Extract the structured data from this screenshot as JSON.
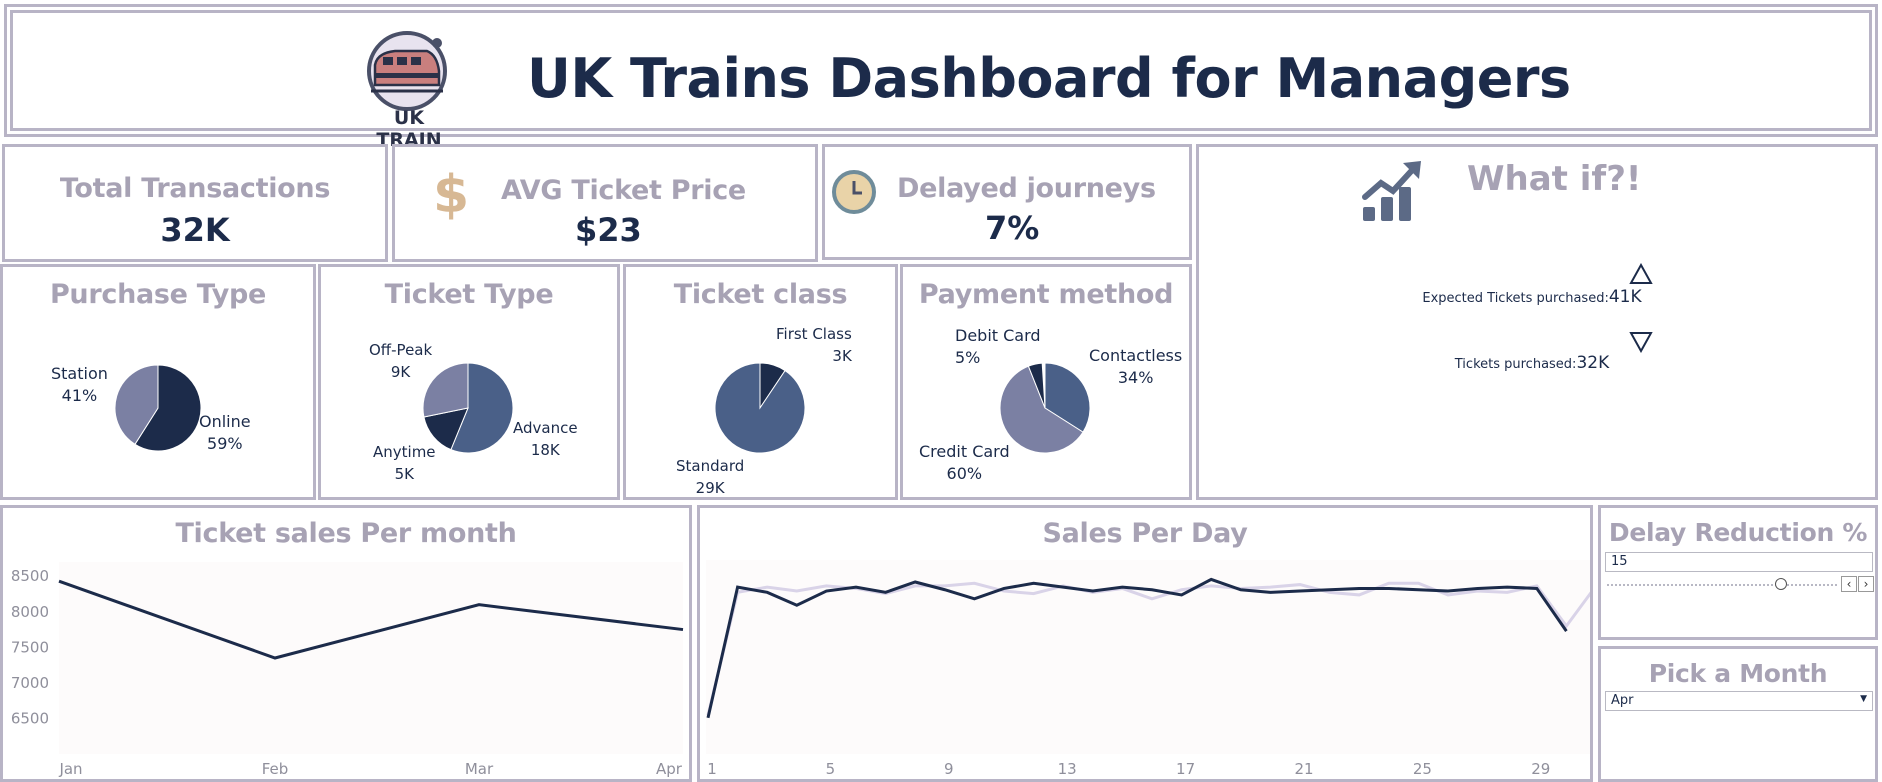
{
  "header": {
    "title": "UK Trains Dashboard for Managers",
    "logo_text": "UK TRAIN"
  },
  "kpis": {
    "total_transactions": {
      "label": "Total Transactions",
      "value": "32K"
    },
    "avg_ticket_price": {
      "label": "AVG Ticket Price",
      "value": "$23",
      "icon": "dollar-icon"
    },
    "delayed_journeys": {
      "label": "Delayed journeys",
      "value": "7%",
      "icon": "clock-icon"
    }
  },
  "whatif": {
    "title": "What if?!",
    "icon": "trend-up-chart-icon",
    "expected_label": "Expected Tickets purchased:",
    "expected_value": "41K",
    "purchased_label": "Tickets purchased:",
    "purchased_value": "32K"
  },
  "colors": {
    "navy": "#1c2b4a",
    "slate": "#4a6088",
    "lavender": "#7b80a3",
    "muted_title": "#a7a2b4",
    "border": "#b8b4c6",
    "light_line": "#d9d3e8"
  },
  "pies": {
    "purchase_type": {
      "title": "Purchase Type",
      "slices": [
        {
          "name": "Online",
          "value": "59%",
          "share": 0.59,
          "color": "#1c2b4a"
        },
        {
          "name": "Station",
          "value": "41%",
          "share": 0.41,
          "color": "#7b80a3"
        }
      ]
    },
    "ticket_type": {
      "title": "Ticket Type",
      "slices": [
        {
          "name": "Advance",
          "value": "18K",
          "share": 0.562,
          "color": "#4a6088"
        },
        {
          "name": "Anytime",
          "value": "5K",
          "share": 0.156,
          "color": "#1c2b4a"
        },
        {
          "name": "Off-Peak",
          "value": "9K",
          "share": 0.282,
          "color": "#7b80a3"
        }
      ]
    },
    "ticket_class": {
      "title": "Ticket class",
      "slices": [
        {
          "name": "First Class",
          "value": "3K",
          "share": 0.094,
          "color": "#1c2b4a"
        },
        {
          "name": "Standard",
          "value": "29K",
          "share": 0.906,
          "color": "#4a6088"
        }
      ]
    },
    "payment_method": {
      "title": "Payment method",
      "slices": [
        {
          "name": "Contactless",
          "value": "34%",
          "share": 0.34,
          "color": "#4a6088"
        },
        {
          "name": "Credit Card",
          "value": "60%",
          "share": 0.6,
          "color": "#7b80a3"
        },
        {
          "name": "Debit Card",
          "value": "5%",
          "share": 0.05,
          "color": "#1c2b4a"
        }
      ]
    }
  },
  "chart_data": [
    {
      "type": "line",
      "title": "Ticket sales Per month",
      "categories": [
        "Jan",
        "Feb",
        "Mar",
        "Apr"
      ],
      "values": [
        8430,
        7350,
        8100,
        7750
      ],
      "yticks": [
        6500,
        7000,
        7500,
        8000,
        8500
      ],
      "ylim": [
        6000,
        8700
      ],
      "color": "#1c2b4a"
    },
    {
      "type": "line",
      "title": "Sales Per Day",
      "x": [
        1,
        2,
        3,
        4,
        5,
        6,
        7,
        8,
        9,
        10,
        11,
        12,
        13,
        14,
        15,
        16,
        17,
        18,
        19,
        20,
        21,
        22,
        23,
        24,
        25,
        26,
        27,
        28,
        29,
        30,
        31
      ],
      "xticks": [
        1,
        5,
        9,
        13,
        17,
        21,
        25,
        29
      ],
      "series": [
        {
          "values": [
            280,
            1290,
            1250,
            1150,
            1260,
            1290,
            1250,
            1330,
            1270,
            1200,
            1280,
            1320,
            1290,
            1260,
            1290,
            1270,
            1230,
            1350,
            1270,
            1250,
            1260,
            1270,
            1280,
            1280,
            1270,
            1260,
            1280,
            1290,
            1280,
            950,
            null
          ],
          "color": "#1c2b4a"
        },
        {
          "values": [
            300,
            1250,
            1290,
            1260,
            1300,
            1280,
            1240,
            1300,
            1300,
            1320,
            1260,
            1240,
            1300,
            1250,
            1280,
            1200,
            1270,
            1300,
            1280,
            1290,
            1310,
            1250,
            1230,
            1320,
            1320,
            1230,
            1260,
            1250,
            1300,
            990,
            1300
          ],
          "color": "#d9d3e8"
        }
      ],
      "ylim": [
        0,
        1500
      ]
    }
  ],
  "controls": {
    "delay_reduction": {
      "title": "Delay Reduction %",
      "value": "15",
      "slider_fraction": 0.75
    },
    "month_picker": {
      "title": "Pick a Month",
      "selected": "Apr"
    }
  }
}
